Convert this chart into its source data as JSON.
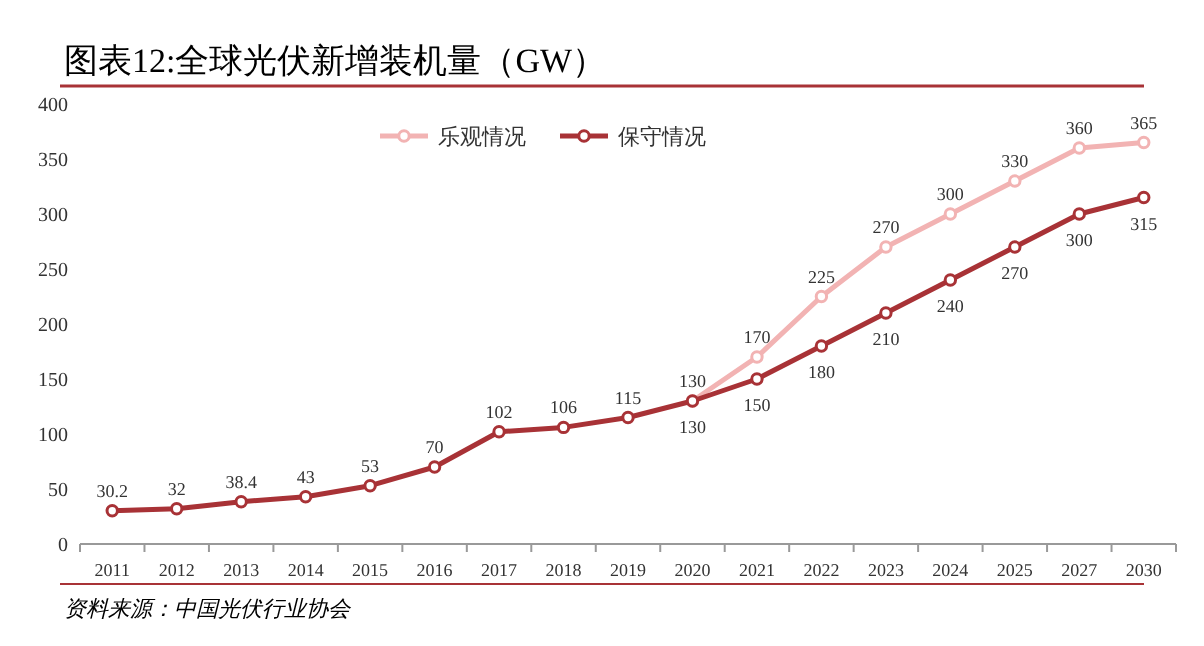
{
  "chart_data": {
    "type": "line",
    "title": "图表12:全球光伏新增装机量（GW）",
    "categories": [
      "2011",
      "2012",
      "2013",
      "2014",
      "2015",
      "2016",
      "2017",
      "2018",
      "2019",
      "2020",
      "2021",
      "2022",
      "2023",
      "2024",
      "2025",
      "2027",
      "2030"
    ],
    "series": [
      {
        "name": "乐观情况",
        "color": "#f2b3b3",
        "values": [
          null,
          null,
          null,
          null,
          null,
          null,
          null,
          null,
          null,
          130,
          170,
          225,
          270,
          300,
          330,
          360,
          365
        ]
      },
      {
        "name": "保守情况",
        "color": "#a83236",
        "values": [
          30.2,
          32,
          38.4,
          43,
          53,
          70,
          102,
          106,
          115,
          130,
          150,
          180,
          210,
          240,
          270,
          300,
          315
        ]
      }
    ],
    "ylim": [
      0,
      400
    ],
    "yticks": [
      0,
      50,
      100,
      150,
      200,
      250,
      300,
      350,
      400
    ],
    "data_labels": true,
    "legend": "top",
    "marker": "circle",
    "grid": false,
    "annotations": [
      "资料来源：中国光伏行业协会"
    ]
  }
}
